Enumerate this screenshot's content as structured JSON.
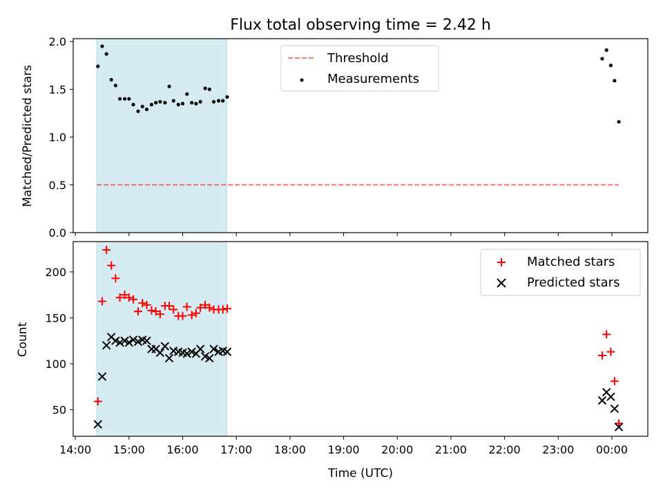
{
  "chart_data": [
    {
      "type": "scatter",
      "title": "Flux total observing time = 2.42 h",
      "xlabel": "",
      "ylabel": "Matched/Predicted stars",
      "xlim_hours": [
        13.96,
        24.67
      ],
      "ylim": [
        0,
        2.03
      ],
      "yticks": [
        0.0,
        0.5,
        1.0,
        1.5,
        2.0
      ],
      "ytick_labels": [
        "0.0",
        "0.5",
        "1.0",
        "1.5",
        "2.0"
      ],
      "shaded_span_hours": [
        14.4,
        16.82
      ],
      "shade_color": "#add8e6",
      "threshold": {
        "name": "Threshold",
        "value": 0.5,
        "x_range_hours": [
          14.4,
          24.13
        ],
        "color": "#ff0000"
      },
      "legend": [
        "Threshold",
        "Measurements"
      ],
      "legend_position": "upper-center",
      "series": [
        {
          "name": "Measurements",
          "marker": "dot",
          "color": "#000000",
          "x": [
            14.42,
            14.5,
            14.58,
            14.67,
            14.75,
            14.83,
            14.92,
            15.0,
            15.08,
            15.17,
            15.25,
            15.33,
            15.42,
            15.5,
            15.58,
            15.67,
            15.75,
            15.83,
            15.92,
            16.0,
            16.08,
            16.17,
            16.25,
            16.33,
            16.42,
            16.5,
            16.58,
            16.67,
            16.75,
            16.83,
            23.82,
            23.9,
            23.98,
            24.05,
            24.13
          ],
          "y": [
            1.74,
            1.95,
            1.87,
            1.6,
            1.54,
            1.4,
            1.4,
            1.4,
            1.34,
            1.27,
            1.32,
            1.29,
            1.34,
            1.36,
            1.37,
            1.36,
            1.53,
            1.38,
            1.34,
            1.35,
            1.45,
            1.36,
            1.35,
            1.37,
            1.51,
            1.5,
            1.37,
            1.38,
            1.38,
            1.42,
            1.82,
            1.91,
            1.75,
            1.59,
            1.16
          ]
        }
      ]
    },
    {
      "type": "scatter",
      "xlabel": "Time (UTC)",
      "ylabel": "Count",
      "xlim_hours": [
        13.96,
        24.67
      ],
      "ylim": [
        21,
        233
      ],
      "yticks": [
        50,
        100,
        150,
        200
      ],
      "ytick_labels": [
        "50",
        "100",
        "150",
        "200"
      ],
      "xticks_hours": [
        14,
        15,
        16,
        17,
        18,
        19,
        20,
        21,
        22,
        23,
        24
      ],
      "xtick_labels": [
        "14:00",
        "15:00",
        "16:00",
        "17:00",
        "18:00",
        "19:00",
        "20:00",
        "21:00",
        "22:00",
        "23:00",
        "00:00"
      ],
      "shaded_span_hours": [
        14.4,
        16.82
      ],
      "shade_color": "#add8e6",
      "legend": [
        "Matched stars",
        "Predicted stars"
      ],
      "legend_position": "top-right",
      "series": [
        {
          "name": "Matched stars",
          "marker": "plus",
          "color": "#ff0000",
          "x": [
            14.42,
            14.5,
            14.58,
            14.67,
            14.75,
            14.83,
            14.92,
            15.0,
            15.08,
            15.17,
            15.25,
            15.33,
            15.42,
            15.5,
            15.58,
            15.67,
            15.75,
            15.83,
            15.92,
            16.0,
            16.08,
            16.17,
            16.25,
            16.33,
            16.42,
            16.5,
            16.58,
            16.67,
            16.75,
            16.83,
            23.82,
            23.9,
            23.98,
            24.05,
            24.13
          ],
          "y": [
            59,
            168,
            224,
            207,
            193,
            172,
            175,
            172,
            170,
            157,
            166,
            164,
            158,
            157,
            154,
            163,
            163,
            159,
            152,
            152,
            162,
            153,
            155,
            161,
            164,
            161,
            159,
            159,
            159,
            160,
            109,
            132,
            113,
            81,
            35
          ]
        },
        {
          "name": "Predicted stars",
          "marker": "x",
          "color": "#000000",
          "x": [
            14.42,
            14.5,
            14.58,
            14.67,
            14.75,
            14.83,
            14.92,
            15.0,
            15.08,
            15.17,
            15.25,
            15.33,
            15.42,
            15.5,
            15.58,
            15.67,
            15.75,
            15.83,
            15.92,
            16.0,
            16.08,
            16.17,
            16.25,
            16.33,
            16.42,
            16.5,
            16.58,
            16.67,
            16.75,
            16.83,
            23.82,
            23.9,
            23.98,
            24.05,
            24.13
          ],
          "y": [
            34,
            86,
            120,
            129,
            125,
            123,
            125,
            123,
            126,
            124,
            126,
            125,
            116,
            116,
            112,
            119,
            106,
            114,
            113,
            112,
            111,
            113,
            111,
            116,
            108,
            106,
            116,
            113,
            114,
            113,
            60,
            69,
            64,
            51,
            31
          ]
        }
      ]
    }
  ]
}
